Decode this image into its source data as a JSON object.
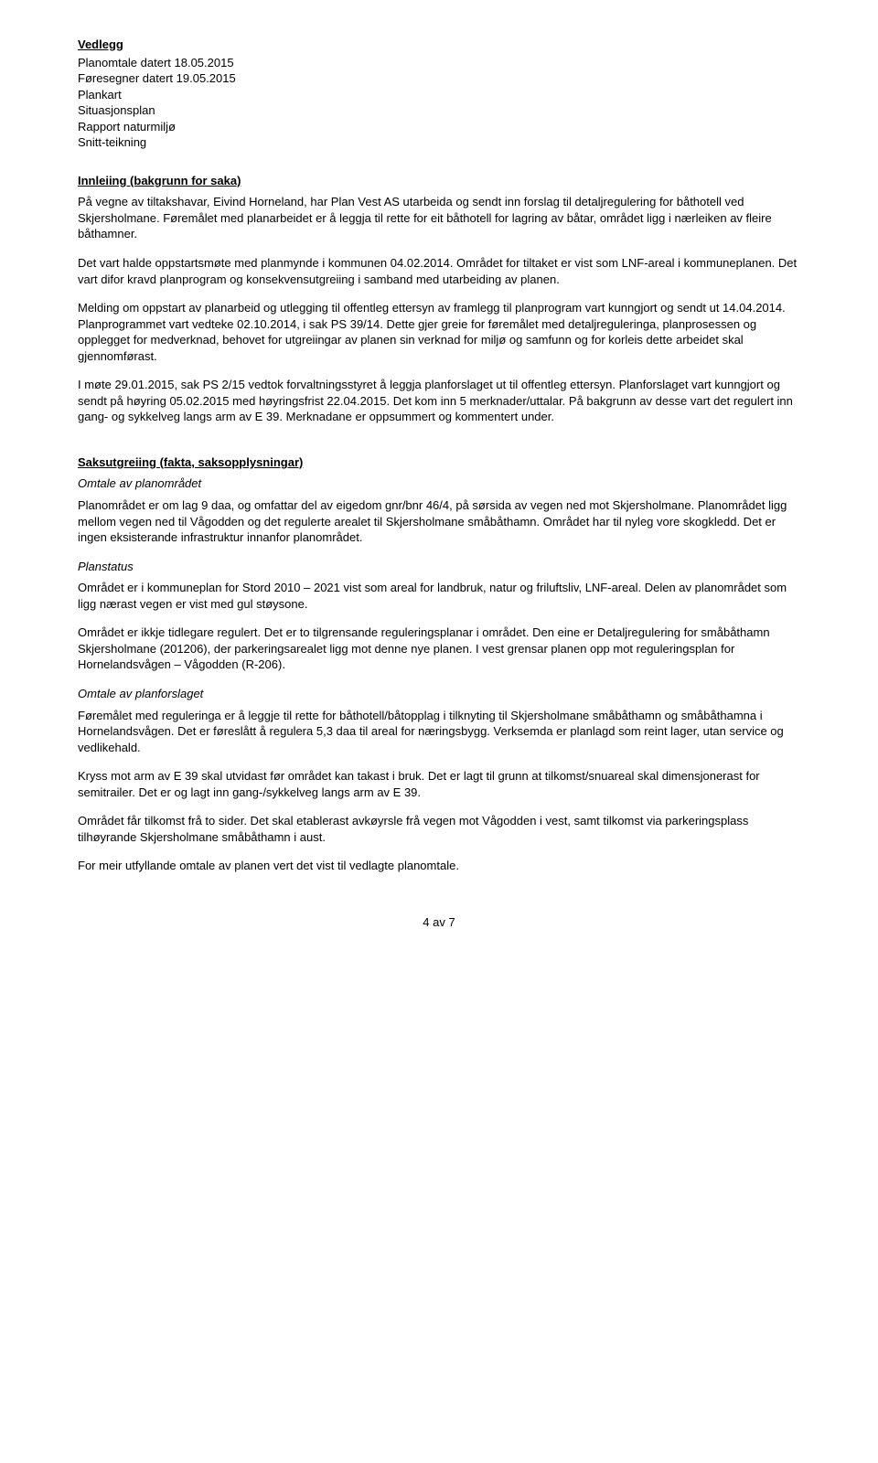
{
  "attachments": {
    "title": "Vedlegg",
    "items": [
      "Planomtale datert 18.05.2015",
      "Føresegner datert 19.05.2015",
      "Plankart",
      "Situasjonsplan",
      "Rapport naturmiljø",
      "Snitt-teikning"
    ]
  },
  "intro": {
    "title": "Innleiing (bakgrunn for saka)",
    "p1": "På vegne av tiltakshavar, Eivind Horneland, har Plan Vest AS utarbeida og sendt inn forslag til detaljregulering for båthotell ved Skjersholmane. Føremålet med planarbeidet er å leggja til rette for eit båthotell for lagring av båtar, området ligg i nærleiken av fleire båthamner.",
    "p2": "Det vart halde oppstartsmøte med planmynde i kommunen 04.02.2014. Området for tiltaket er vist som LNF-areal i kommuneplanen. Det vart difor kravd planprogram og konsekvensutgreiing i samband med utarbeiding av planen.",
    "p3": "Melding om oppstart av planarbeid og utlegging til offentleg ettersyn av framlegg til planprogram vart kunngjort og sendt ut 14.04.2014. Planprogrammet vart vedteke 02.10.2014, i sak PS 39/14. Dette gjer greie for føremålet med detaljreguleringa, planprosessen og opplegget for medverknad, behovet for utgreiingar av planen sin verknad for miljø og samfunn og for korleis dette arbeidet skal gjennomførast.",
    "p4": "I møte 29.01.2015, sak PS 2/15 vedtok forvaltningsstyret å leggja planforslaget ut til offentleg ettersyn. Planforslaget vart kunngjort og sendt på høyring 05.02.2015 med høyringsfrist 22.04.2015. Det kom inn 5 merknader/uttalar. På bakgrunn av desse vart det regulert inn gang- og sykkelveg langs arm av E 39. Merknadane er oppsummert og kommentert under."
  },
  "facts": {
    "title": "Saksutgreiing (fakta, saksopplysningar)",
    "sec1": {
      "heading": "Omtale av planområdet",
      "p1": "Planområdet er om lag 9 daa, og omfattar del av eigedom gnr/bnr 46/4, på sørsida av vegen ned mot Skjersholmane. Planområdet ligg mellom vegen ned til Vågodden og det regulerte arealet til Skjersholmane småbåthamn. Området har til nyleg vore skogkledd. Det er ingen eksisterande infrastruktur innanfor planområdet."
    },
    "sec2": {
      "heading": "Planstatus",
      "p1": "Området er i kommuneplan for Stord 2010 – 2021 vist som areal for landbruk, natur og friluftsliv, LNF-areal. Delen av planområdet som ligg nærast vegen er vist med gul støysone.",
      "p2": "Området er ikkje tidlegare regulert. Det er to tilgrensande reguleringsplanar i området. Den eine er Detaljregulering for småbåthamn Skjersholmane (201206), der parkeringsarealet ligg mot denne nye planen. I vest grensar planen opp mot reguleringsplan for Hornelandsvågen – Vågodden (R-206)."
    },
    "sec3": {
      "heading": "Omtale av planforslaget",
      "p1": "Føremålet med reguleringa er å leggje til rette for båthotell/båtopplag i tilknyting til Skjersholmane småbåthamn og småbåthamna i Hornelandsvågen. Det er føreslått å regulera 5,3 daa til areal for næringsbygg. Verksemda er planlagd som reint lager, utan service og vedlikehald.",
      "p2": "Kryss mot arm av E 39 skal utvidast før området kan takast i bruk. Det er lagt til grunn at tilkomst/snuareal skal dimensjonerast for semitrailer. Det er og lagt inn gang-/sykkelveg langs arm av E 39.",
      "p3": "Området får tilkomst frå to sider. Det skal etablerast avkøyrsle frå vegen mot Vågodden i vest, samt tilkomst via parkeringsplass tilhøyrande Skjersholmane småbåthamn i aust.",
      "p4": "For meir utfyllande omtale av planen vert det vist til vedlagte planomtale."
    }
  },
  "footer": "4 av 7"
}
